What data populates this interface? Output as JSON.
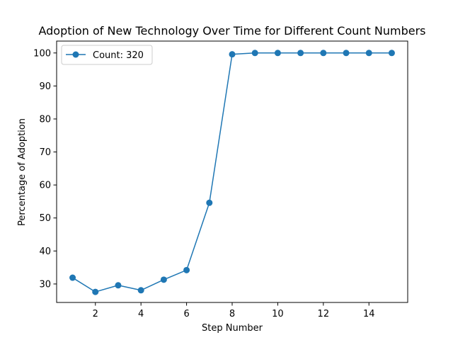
{
  "chart_data": {
    "type": "line",
    "title": "Adoption of New Technology Over Time for Different Count Numbers",
    "xlabel": "Step Number",
    "ylabel": "Percentage of Adoption",
    "xlim": [
      0.3,
      15.7
    ],
    "ylim": [
      24.4,
      103.6
    ],
    "xticks": [
      2,
      4,
      6,
      8,
      10,
      12,
      14
    ],
    "yticks": [
      30,
      40,
      50,
      60,
      70,
      80,
      90,
      100
    ],
    "grid": false,
    "legend_position": "upper-left",
    "color": "#1f77b4",
    "series": [
      {
        "name": "Count: 320",
        "x": [
          1,
          2,
          3,
          4,
          5,
          6,
          7,
          8,
          9,
          10,
          11,
          12,
          13,
          14,
          15
        ],
        "values": [
          31.9,
          27.6,
          29.6,
          28.1,
          31.3,
          34.2,
          54.6,
          99.6,
          100,
          100,
          100,
          100,
          100,
          100,
          100
        ]
      }
    ]
  }
}
